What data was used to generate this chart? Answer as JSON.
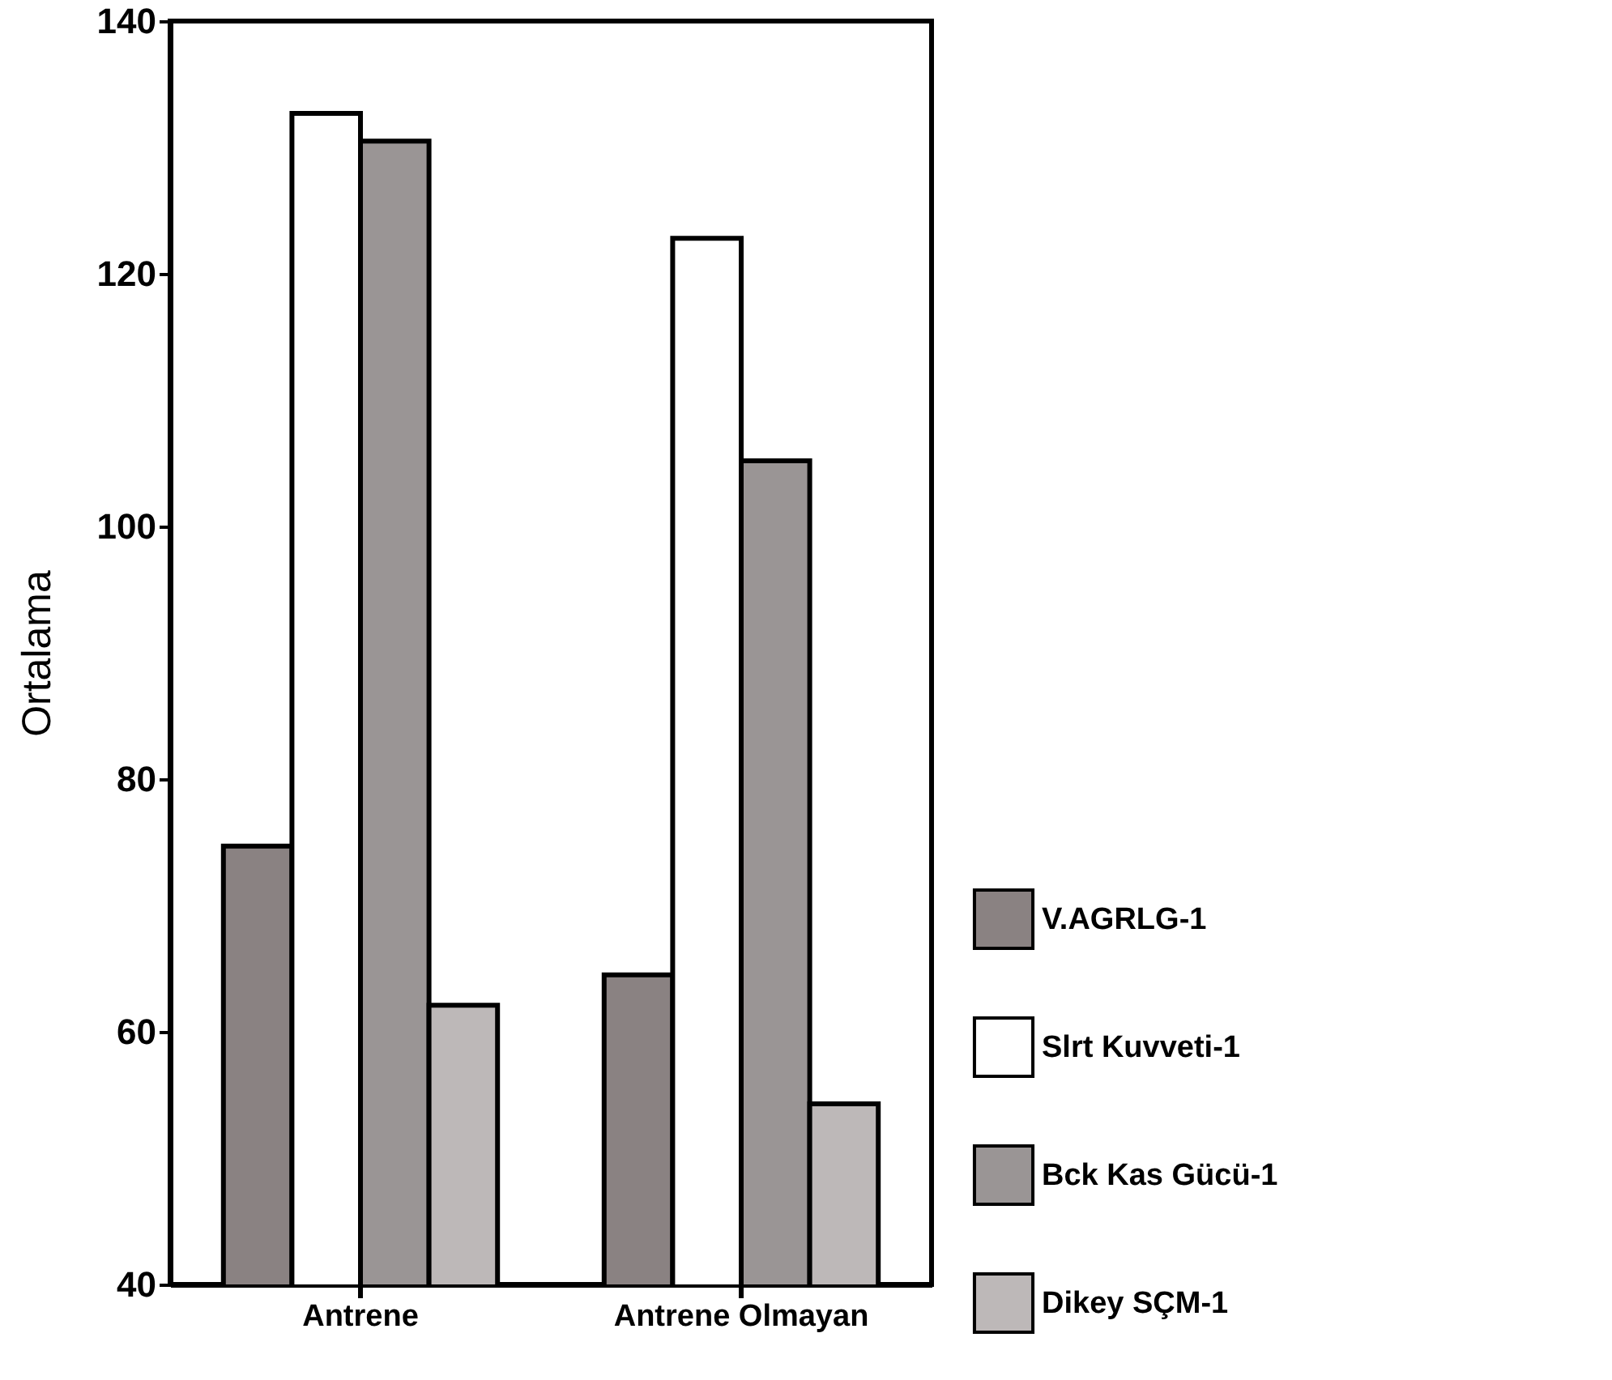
{
  "chart_data": {
    "type": "bar",
    "ylabel": "Ortalama",
    "categories": [
      "Antrene",
      "Antrene Olmayan"
    ],
    "series": [
      {
        "name": "V.AGRLG-1",
        "color": "#8a8282",
        "values": [
          74.7,
          64.5
        ]
      },
      {
        "name": "Slrt Kuvveti-1",
        "color": "#ffffff",
        "values": [
          132.7,
          122.8
        ]
      },
      {
        "name": "Bck Kas Gücü-1",
        "color": "#9a9595",
        "values": [
          130.5,
          105.2
        ]
      },
      {
        "name": "Dikey SÇM-1",
        "color": "#bdb8b8",
        "values": [
          62.1,
          54.3
        ]
      }
    ],
    "ylim": [
      40,
      140
    ],
    "yticks": [
      40,
      60,
      80,
      100,
      120,
      140
    ],
    "grid": false,
    "legend": "bottom right"
  }
}
